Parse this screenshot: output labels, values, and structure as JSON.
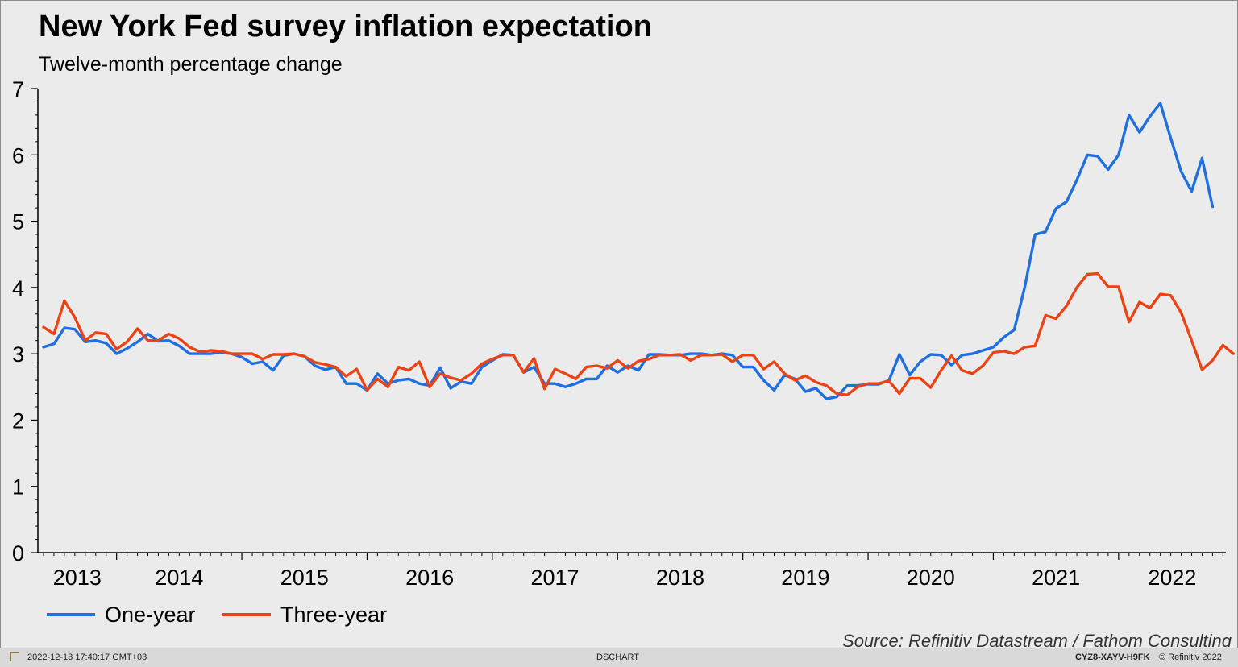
{
  "chart_data": {
    "type": "line",
    "title": "New York Fed survey inflation expectation",
    "subtitle": "Twelve-month percentage change",
    "ylim": [
      0,
      7
    ],
    "yticks": [
      0,
      1,
      2,
      3,
      4,
      5,
      6,
      7
    ],
    "xticks": [
      "2013",
      "2014",
      "2015",
      "2016",
      "2017",
      "2018",
      "2019",
      "2020",
      "2021",
      "2022"
    ],
    "x_start": "2013-06",
    "grid": false,
    "legend_position": "bottom-left",
    "series": [
      {
        "name": "One-year",
        "color": "#1f6fde",
        "values": [
          3.1,
          3.15,
          3.39,
          3.37,
          3.18,
          3.2,
          3.16,
          3.0,
          3.08,
          3.18,
          3.3,
          3.19,
          3.2,
          3.12,
          3.0,
          3.0,
          3.0,
          3.02,
          3.0,
          2.95,
          2.85,
          2.88,
          2.75,
          2.97,
          3.0,
          2.96,
          2.82,
          2.76,
          2.8,
          2.55,
          2.55,
          2.45,
          2.7,
          2.55,
          2.6,
          2.62,
          2.55,
          2.52,
          2.79,
          2.48,
          2.58,
          2.55,
          2.8,
          2.9,
          2.99,
          2.98,
          2.72,
          2.8,
          2.55,
          2.55,
          2.5,
          2.55,
          2.62,
          2.62,
          2.82,
          2.72,
          2.82,
          2.75,
          2.99,
          2.99,
          2.98,
          2.98,
          3.0,
          3.0,
          2.98,
          3.0,
          2.98,
          2.8,
          2.8,
          2.6,
          2.45,
          2.68,
          2.62,
          2.43,
          2.48,
          2.32,
          2.35,
          2.52,
          2.52,
          2.54,
          2.54,
          2.6,
          2.99,
          2.68,
          2.88,
          2.99,
          2.98,
          2.83,
          2.98,
          3.0,
          3.05,
          3.1,
          3.25,
          3.36,
          4.0,
          4.8,
          4.84,
          5.19,
          5.29,
          5.62,
          6.0,
          5.98,
          5.78,
          6.0,
          6.6,
          6.34,
          6.58,
          6.78,
          6.25,
          5.75,
          5.45,
          5.95,
          5.22
        ]
      },
      {
        "name": "Three-year",
        "color": "#ec4315",
        "values": [
          3.4,
          3.3,
          3.8,
          3.55,
          3.2,
          3.32,
          3.3,
          3.07,
          3.18,
          3.38,
          3.2,
          3.2,
          3.3,
          3.23,
          3.1,
          3.03,
          3.05,
          3.04,
          3.0,
          3.0,
          3.0,
          2.92,
          2.99,
          2.99,
          3.0,
          2.96,
          2.87,
          2.84,
          2.8,
          2.66,
          2.77,
          2.45,
          2.62,
          2.5,
          2.8,
          2.75,
          2.88,
          2.5,
          2.7,
          2.64,
          2.6,
          2.7,
          2.85,
          2.92,
          2.98,
          2.98,
          2.72,
          2.93,
          2.47,
          2.77,
          2.7,
          2.62,
          2.8,
          2.82,
          2.78,
          2.9,
          2.78,
          2.89,
          2.92,
          2.98,
          2.98,
          2.99,
          2.9,
          2.98,
          2.98,
          2.99,
          2.88,
          2.98,
          2.98,
          2.77,
          2.88,
          2.7,
          2.6,
          2.67,
          2.57,
          2.52,
          2.4,
          2.38,
          2.5,
          2.55,
          2.55,
          2.59,
          2.4,
          2.63,
          2.63,
          2.49,
          2.75,
          2.97,
          2.75,
          2.7,
          2.82,
          3.02,
          3.04,
          3.0,
          3.1,
          3.12,
          3.58,
          3.53,
          3.72,
          4.0,
          4.2,
          4.21,
          4.01,
          4.01,
          3.48,
          3.78,
          3.69,
          3.9,
          3.88,
          3.62,
          3.2,
          2.76,
          2.9,
          3.13,
          3.0
        ]
      }
    ]
  },
  "source": "Source: Refinitiv Datastream / Fathom Consulting",
  "footer": {
    "timestamp": "2022-12-13 17:40:17 GMT+03",
    "app": "DSCHART",
    "chart_id": "CYZ8-XAYV-H9FK",
    "copyright": "© Refinitiv 2022"
  }
}
